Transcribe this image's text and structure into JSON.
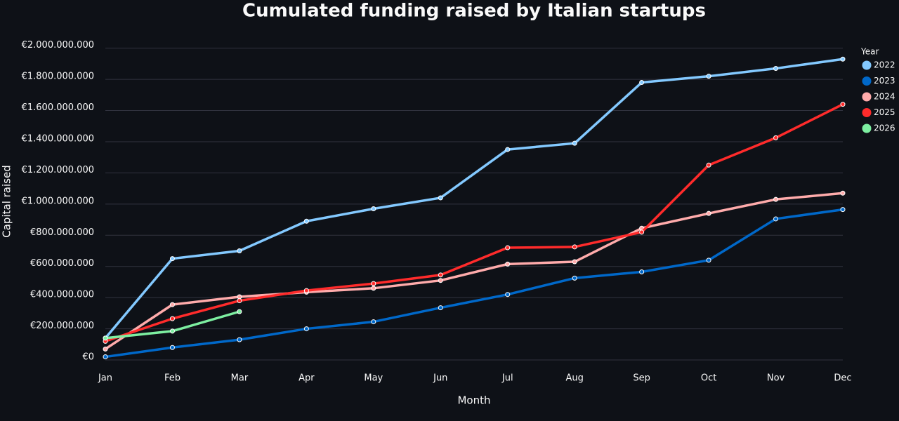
{
  "chart_data": {
    "type": "line",
    "title": "Cumulated funding raised by Italian startups",
    "x_label": "Month",
    "y_label": "Capital raised",
    "legend_title": "Year",
    "categories": [
      "Jan",
      "Feb",
      "Mar",
      "Apr",
      "May",
      "Jun",
      "Jul",
      "Aug",
      "Sep",
      "Oct",
      "Nov",
      "Dec"
    ],
    "series": [
      {
        "name": "2022",
        "color": "#83c9ff",
        "values": [
          140000000,
          650000000,
          700000000,
          890000000,
          970000000,
          1040000000,
          1350000000,
          1390000000,
          1780000000,
          1820000000,
          1870000000,
          1930000000
        ]
      },
      {
        "name": "2023",
        "color": "#0068c9",
        "values": [
          20000000,
          80000000,
          130000000,
          200000000,
          245000000,
          335000000,
          420000000,
          525000000,
          565000000,
          640000000,
          905000000,
          965000000
        ]
      },
      {
        "name": "2024",
        "color": "#ffabab",
        "values": [
          70000000,
          355000000,
          405000000,
          435000000,
          460000000,
          510000000,
          615000000,
          630000000,
          845000000,
          940000000,
          1030000000,
          1070000000
        ]
      },
      {
        "name": "2025",
        "color": "#ff2b2b",
        "values": [
          120000000,
          265000000,
          380000000,
          445000000,
          490000000,
          545000000,
          720000000,
          725000000,
          820000000,
          1250000000,
          1425000000,
          1640000000
        ]
      },
      {
        "name": "2026",
        "color": "#7defa1",
        "values": [
          140000000,
          185000000,
          310000000,
          null,
          null,
          null,
          null,
          null,
          null,
          null,
          null,
          null
        ]
      }
    ],
    "ylim": [
      0,
      2030000000
    ],
    "yticks": [
      {
        "value": 0,
        "label": "€0"
      },
      {
        "value": 200000000,
        "label": "€200.000.000"
      },
      {
        "value": 400000000,
        "label": "€400.000.000"
      },
      {
        "value": 600000000,
        "label": "€600.000.000"
      },
      {
        "value": 800000000,
        "label": "€800.000.000"
      },
      {
        "value": 1000000000,
        "label": "€1.000.000.000"
      },
      {
        "value": 1200000000,
        "label": "€1.200.000.000"
      },
      {
        "value": 1400000000,
        "label": "€1.400.000.000"
      },
      {
        "value": 1600000000,
        "label": "€1.600.000.000"
      },
      {
        "value": 1800000000,
        "label": "€1.800.000.000"
      },
      {
        "value": 2000000000,
        "label": "€2.000.000.000"
      }
    ],
    "grid": true,
    "legend": "right"
  }
}
